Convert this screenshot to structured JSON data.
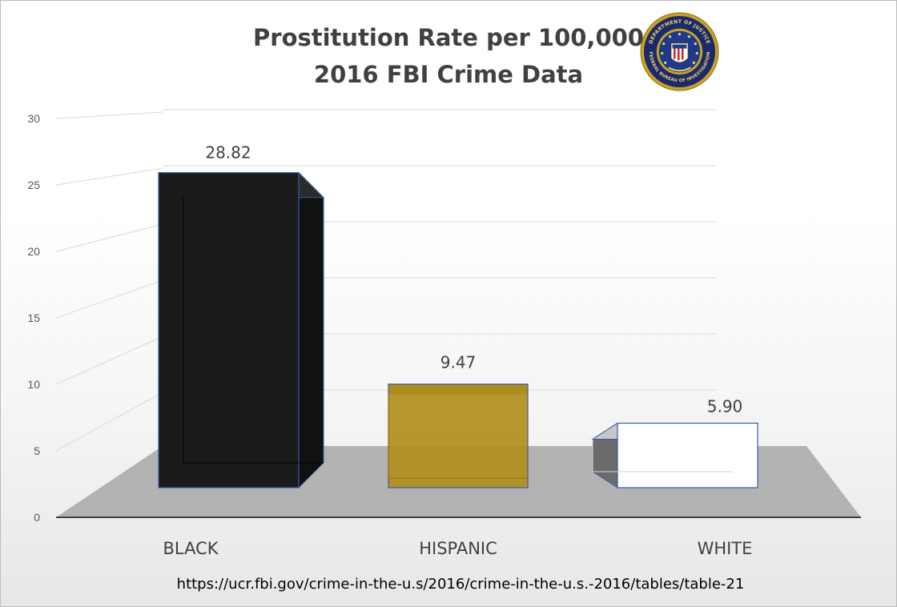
{
  "header": {
    "title_line1": "Prostitution Rate per 100,000",
    "title_line2": "2016 FBI Crime Data"
  },
  "seal": {
    "text_top": "DEPARTMENT OF JUSTICE",
    "text_bottom": "FEDERAL BUREAU OF INVESTIGATION"
  },
  "chart_data": {
    "type": "bar",
    "categories": [
      "BLACK",
      "HISPANIC",
      "WHITE"
    ],
    "values": [
      28.82,
      9.47,
      5.9
    ],
    "data_labels": [
      "28.82",
      "9.47",
      "5.90"
    ],
    "title": "Prostitution Rate per 100,000 2016 FBI Crime Data",
    "xlabel": "",
    "ylabel": "",
    "ylim": [
      0,
      30
    ],
    "yticks": [
      0,
      5,
      10,
      15,
      20,
      25,
      30
    ],
    "grid": true,
    "legend": "none",
    "colors": [
      "#1b1b1b",
      "#b08f1c",
      "#ffffff"
    ],
    "style": "3d-box"
  },
  "footer": {
    "source": "https://ucr.fbi.gov/crime-in-the-u.s/2016/crime-in-the-u.s.-2016/tables/table-21"
  }
}
